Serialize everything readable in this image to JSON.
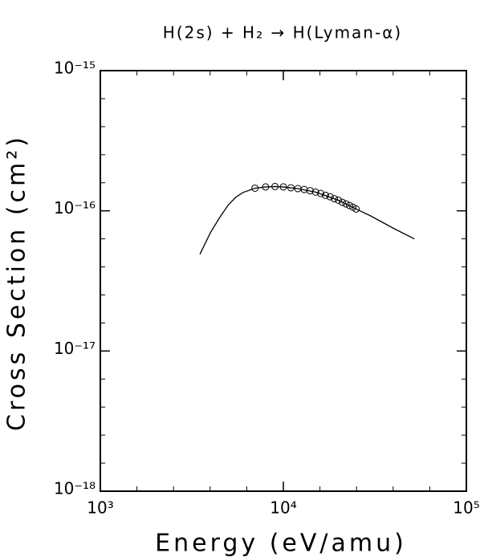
{
  "chart_data": {
    "type": "scatter",
    "title": "H(2s) + H₂ → H(Lyman-α)",
    "x_label": "Energy (eV/amu)",
    "y_label": "Cross Section (cm²)",
    "xscale": "log",
    "yscale": "log",
    "xlim": [
      1000,
      100000
    ],
    "ylim": [
      1e-18,
      1e-15
    ],
    "xticks": [
      {
        "value": 1000,
        "label": "10³"
      },
      {
        "value": 10000,
        "label": "10⁴"
      },
      {
        "value": 100000,
        "label": "10⁵"
      }
    ],
    "yticks": [
      {
        "value": 1e-18,
        "label": "10⁻¹⁸"
      },
      {
        "value": 1e-17,
        "label": "10⁻¹⁷"
      },
      {
        "value": 1e-16,
        "label": "10⁻¹⁶"
      },
      {
        "value": 1e-15,
        "label": "10⁻¹⁵"
      }
    ],
    "minor_ticks_per_decade": 5,
    "series": [
      {
        "mode": "markers",
        "color": "#000000",
        "x": [
          7000,
          8000,
          9000,
          10000,
          11000,
          12000,
          13000,
          14000,
          15000,
          16000,
          17000,
          18000,
          19000,
          20000,
          21000,
          22000,
          23000,
          24000,
          25000
        ],
        "values": [
          1.45e-16,
          1.48e-16,
          1.49e-16,
          1.48e-16,
          1.46e-16,
          1.44e-16,
          1.42e-16,
          1.39e-16,
          1.36e-16,
          1.33e-16,
          1.29e-16,
          1.26e-16,
          1.22e-16,
          1.19e-16,
          1.15e-16,
          1.12e-16,
          1.09e-16,
          1.06e-16,
          1.03e-16
        ]
      },
      {
        "mode": "line",
        "color": "#000000",
        "x": [
          3500,
          4000,
          4500,
          5000,
          5500,
          6000,
          7000,
          8000,
          9000,
          10000,
          12000,
          15000,
          20000,
          25000,
          30000,
          40000,
          52000
        ],
        "values": [
          4.9e-17,
          7e-17,
          9e-17,
          1.1e-16,
          1.25e-16,
          1.35e-16,
          1.45e-16,
          1.48e-16,
          1.49e-16,
          1.48e-16,
          1.44e-16,
          1.36e-16,
          1.19e-16,
          1.03e-16,
          9.2e-17,
          7.5e-17,
          6.3e-17
        ]
      }
    ]
  }
}
